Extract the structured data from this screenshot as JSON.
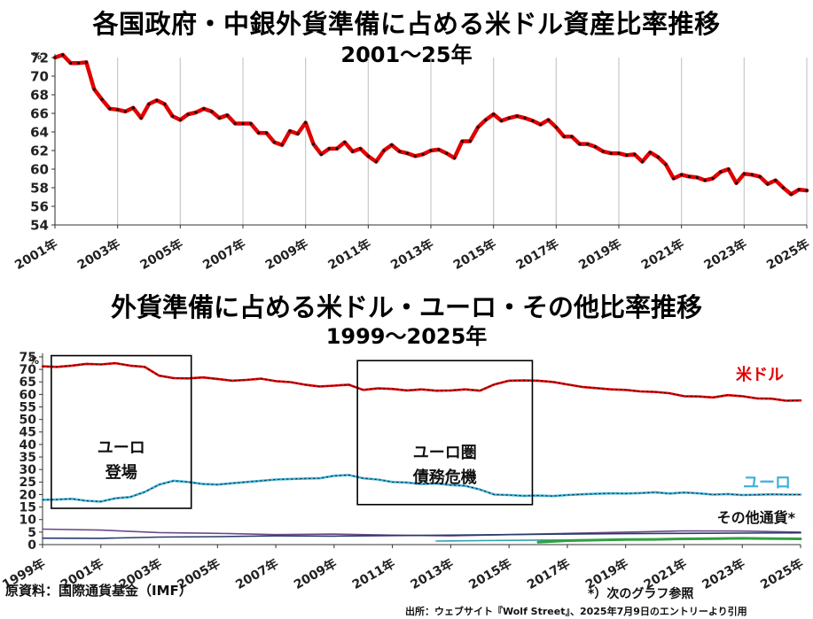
{
  "chart_data": [
    {
      "type": "line",
      "title": "各国政府・中銀外貨準備に占める米ドル資産比率推移",
      "subtitle": "2001〜25年",
      "ylabel_unit": "%",
      "ylim": [
        54,
        72
      ],
      "yticks": [
        "54",
        "56",
        "58",
        "60",
        "62",
        "64",
        "66",
        "68",
        "70",
        "72"
      ],
      "xlim": [
        2001,
        2025
      ],
      "xtick_labels": [
        "2001年",
        "2003年",
        "2005年",
        "2007年",
        "2009年",
        "2011年",
        "2013年",
        "2015年",
        "2017年",
        "2019年",
        "2021年",
        "2023年",
        "2025年"
      ],
      "grid": "vertical",
      "series": [
        {
          "color": "#e00000",
          "x": [
            2001.0,
            2001.25,
            2001.5,
            2001.75,
            2002.0,
            2002.25,
            2002.5,
            2002.75,
            2003.0,
            2003.25,
            2003.5,
            2003.75,
            2004.0,
            2004.25,
            2004.5,
            2004.75,
            2005.0,
            2005.25,
            2005.5,
            2005.75,
            2006.0,
            2006.25,
            2006.5,
            2006.75,
            2007.0,
            2007.25,
            2007.5,
            2007.75,
            2008.0,
            2008.25,
            2008.5,
            2008.75,
            2009.0,
            2009.25,
            2009.5,
            2009.75,
            2010.0,
            2010.25,
            2010.5,
            2010.75,
            2011.0,
            2011.25,
            2011.5,
            2011.75,
            2012.0,
            2012.25,
            2012.5,
            2012.75,
            2013.0,
            2013.25,
            2013.5,
            2013.75,
            2014.0,
            2014.25,
            2014.5,
            2014.75,
            2015.0,
            2015.25,
            2015.5,
            2015.75,
            2016.0,
            2016.25,
            2016.5,
            2016.75,
            2017.0,
            2017.25,
            2017.5,
            2017.75,
            2018.0,
            2018.25,
            2018.5,
            2018.75,
            2019.0,
            2019.25,
            2019.5,
            2019.75,
            2020.0,
            2020.25,
            2020.5,
            2020.75,
            2021.0,
            2021.25,
            2021.5,
            2021.75,
            2022.0,
            2022.25,
            2022.5,
            2022.75,
            2023.0,
            2023.25,
            2023.5,
            2023.75,
            2024.0,
            2024.25,
            2024.5,
            2024.75,
            2025.0
          ],
          "values": [
            72.0,
            72.3,
            71.4,
            71.4,
            71.5,
            68.6,
            67.5,
            66.5,
            66.4,
            66.2,
            66.6,
            65.5,
            67.0,
            67.4,
            67.0,
            65.7,
            65.3,
            65.9,
            66.1,
            66.5,
            66.2,
            65.5,
            65.8,
            64.9,
            64.9,
            64.9,
            63.9,
            63.9,
            62.9,
            62.6,
            64.1,
            63.8,
            65.0,
            62.7,
            61.6,
            62.2,
            62.2,
            62.9,
            61.9,
            62.2,
            61.4,
            60.8,
            62.0,
            62.6,
            61.9,
            61.7,
            61.4,
            61.6,
            62.0,
            62.1,
            61.7,
            61.2,
            63.0,
            63.0,
            64.5,
            65.3,
            65.9,
            65.2,
            65.5,
            65.7,
            65.5,
            65.2,
            64.8,
            65.3,
            64.5,
            63.5,
            63.5,
            62.7,
            62.7,
            62.4,
            61.9,
            61.7,
            61.7,
            61.5,
            61.6,
            60.8,
            61.8,
            61.3,
            60.5,
            59.0,
            59.4,
            59.2,
            59.1,
            58.8,
            59.0,
            59.7,
            60.0,
            58.5,
            59.5,
            59.4,
            59.2,
            58.4,
            58.8,
            58.0,
            57.3,
            57.8,
            57.7
          ]
        }
      ]
    },
    {
      "type": "line",
      "title": "外貨準備に占める米ドル・ユーロ・その他比率推移",
      "subtitle": "1999〜2025年",
      "ylabel_unit": "%",
      "ylim": [
        0,
        75
      ],
      "yticks": [
        "0",
        "5",
        "10",
        "15",
        "20",
        "25",
        "30",
        "35",
        "40",
        "45",
        "50",
        "55",
        "60",
        "65",
        "70",
        "75"
      ],
      "xlim": [
        1999,
        2025
      ],
      "xtick_labels": [
        "1999年",
        "2001年",
        "2003年",
        "2005年",
        "2007年",
        "2009年",
        "2011年",
        "2013年",
        "2015年",
        "2017年",
        "2019年",
        "2021年",
        "2023年",
        "2025年"
      ],
      "annotation_boxes": [
        {
          "label_lines": [
            "ユーロ",
            "登場"
          ],
          "x_range": [
            1999.3,
            2004.1
          ],
          "y_range": [
            14.5,
            75.5
          ]
        },
        {
          "label_lines": [
            "ユーロ圏",
            "債務危機"
          ],
          "x_range": [
            2009.8,
            2015.8
          ],
          "y_range": [
            16,
            73.5
          ]
        }
      ],
      "series": [
        {
          "name": "米ドル",
          "color": "#e00000",
          "x": [
            1999.0,
            1999.5,
            2000.0,
            2000.5,
            2001.0,
            2001.5,
            2002.0,
            2002.5,
            2003.0,
            2003.5,
            2004.0,
            2004.5,
            2005.0,
            2005.5,
            2006.0,
            2006.5,
            2007.0,
            2007.5,
            2008.0,
            2008.5,
            2009.0,
            2009.5,
            2010.0,
            2010.5,
            2011.0,
            2011.5,
            2012.0,
            2012.5,
            2013.0,
            2013.5,
            2014.0,
            2014.5,
            2015.0,
            2015.5,
            2016.0,
            2016.5,
            2017.0,
            2017.5,
            2018.0,
            2018.5,
            2019.0,
            2019.5,
            2020.0,
            2020.5,
            2021.0,
            2021.5,
            2022.0,
            2022.5,
            2023.0,
            2023.5,
            2024.0,
            2024.5,
            2025.0
          ],
          "values": [
            71.2,
            71.0,
            71.5,
            72.2,
            72.0,
            72.5,
            71.5,
            71.0,
            67.5,
            66.5,
            66.4,
            66.8,
            66.2,
            65.5,
            65.8,
            66.3,
            65.3,
            64.9,
            63.9,
            63.2,
            63.5,
            63.9,
            61.8,
            62.4,
            62.2,
            61.6,
            62.0,
            61.5,
            61.6,
            62.0,
            61.5,
            64.0,
            65.5,
            65.6,
            65.5,
            65.0,
            64.0,
            63.0,
            62.5,
            62.0,
            61.8,
            61.2,
            61.0,
            60.5,
            59.3,
            59.2,
            58.8,
            59.7,
            59.3,
            58.4,
            58.3,
            57.5,
            57.6
          ]
        },
        {
          "name": "ユーロ",
          "color": "#40b0d8",
          "x": [
            1999.0,
            1999.5,
            2000.0,
            2000.5,
            2001.0,
            2001.5,
            2002.0,
            2002.5,
            2003.0,
            2003.5,
            2004.0,
            2004.5,
            2005.0,
            2005.5,
            2006.0,
            2006.5,
            2007.0,
            2007.5,
            2008.0,
            2008.5,
            2009.0,
            2009.5,
            2010.0,
            2010.5,
            2011.0,
            2011.5,
            2012.0,
            2012.5,
            2013.0,
            2013.5,
            2014.0,
            2014.5,
            2015.0,
            2015.5,
            2016.0,
            2016.5,
            2017.0,
            2017.5,
            2018.0,
            2018.5,
            2019.0,
            2019.5,
            2020.0,
            2020.5,
            2021.0,
            2021.5,
            2022.0,
            2022.5,
            2023.0,
            2023.5,
            2024.0,
            2024.5,
            2025.0
          ],
          "values": [
            17.9,
            18.0,
            18.3,
            17.5,
            17.2,
            18.5,
            19.0,
            21.0,
            24.0,
            25.5,
            25.0,
            24.2,
            24.0,
            24.5,
            25.0,
            25.5,
            26.0,
            26.2,
            26.4,
            26.5,
            27.5,
            27.8,
            26.5,
            26.0,
            25.0,
            24.8,
            24.2,
            24.4,
            23.8,
            23.5,
            22.0,
            20.0,
            19.8,
            19.5,
            19.6,
            19.4,
            19.8,
            20.1,
            20.3,
            20.5,
            20.4,
            20.6,
            20.9,
            20.4,
            20.8,
            20.5,
            20.0,
            20.2,
            19.8,
            19.9,
            20.1,
            20.0,
            20.0
          ]
        },
        {
          "name": "その他通貨*",
          "color": "#6a4a8a",
          "x": [
            1999.0,
            2001.0,
            2003.0,
            2005.0,
            2007.0,
            2009.0,
            2011.0,
            2013.0,
            2015.0,
            2017.0,
            2019.0,
            2021.0,
            2023.0,
            2025.0
          ],
          "values": [
            6.2,
            5.8,
            4.8,
            4.5,
            4.0,
            4.2,
            3.8,
            3.5,
            4.0,
            4.5,
            5.0,
            5.5,
            5.4,
            5.0
          ]
        },
        {
          "color": "#2a3a6a",
          "x": [
            1999.0,
            2001.0,
            2003.0,
            2005.0,
            2007.0,
            2009.0,
            2011.0,
            2013.0,
            2015.0,
            2017.0,
            2019.0,
            2021.0,
            2023.0,
            2025.0
          ],
          "values": [
            2.6,
            2.5,
            3.0,
            3.2,
            3.5,
            3.4,
            3.6,
            3.8,
            4.0,
            4.2,
            4.4,
            4.5,
            4.6,
            4.7
          ]
        },
        {
          "color": "#30a0a8",
          "x": [
            2012.5,
            2014.0,
            2016.0,
            2018.0,
            2020.0,
            2022.0,
            2025.0
          ],
          "values": [
            1.4,
            1.6,
            1.8,
            1.9,
            2.0,
            2.2,
            2.4
          ]
        },
        {
          "color": "#30a040",
          "x": [
            2016.0,
            2017.0,
            2018.0,
            2019.0,
            2020.0,
            2021.0,
            2022.0,
            2023.0,
            2024.0,
            2025.0
          ],
          "values": [
            1.0,
            1.6,
            1.8,
            2.0,
            2.1,
            2.3,
            2.4,
            2.5,
            2.4,
            2.3
          ]
        }
      ]
    }
  ],
  "footer": {
    "source_left": "原資料：国際通貨基金（IMF）",
    "note": "*）次のグラフ参照",
    "source_right": "出所：ウェブサイト『Wolf Street』、2025年7月9日のエントリーより引用"
  }
}
